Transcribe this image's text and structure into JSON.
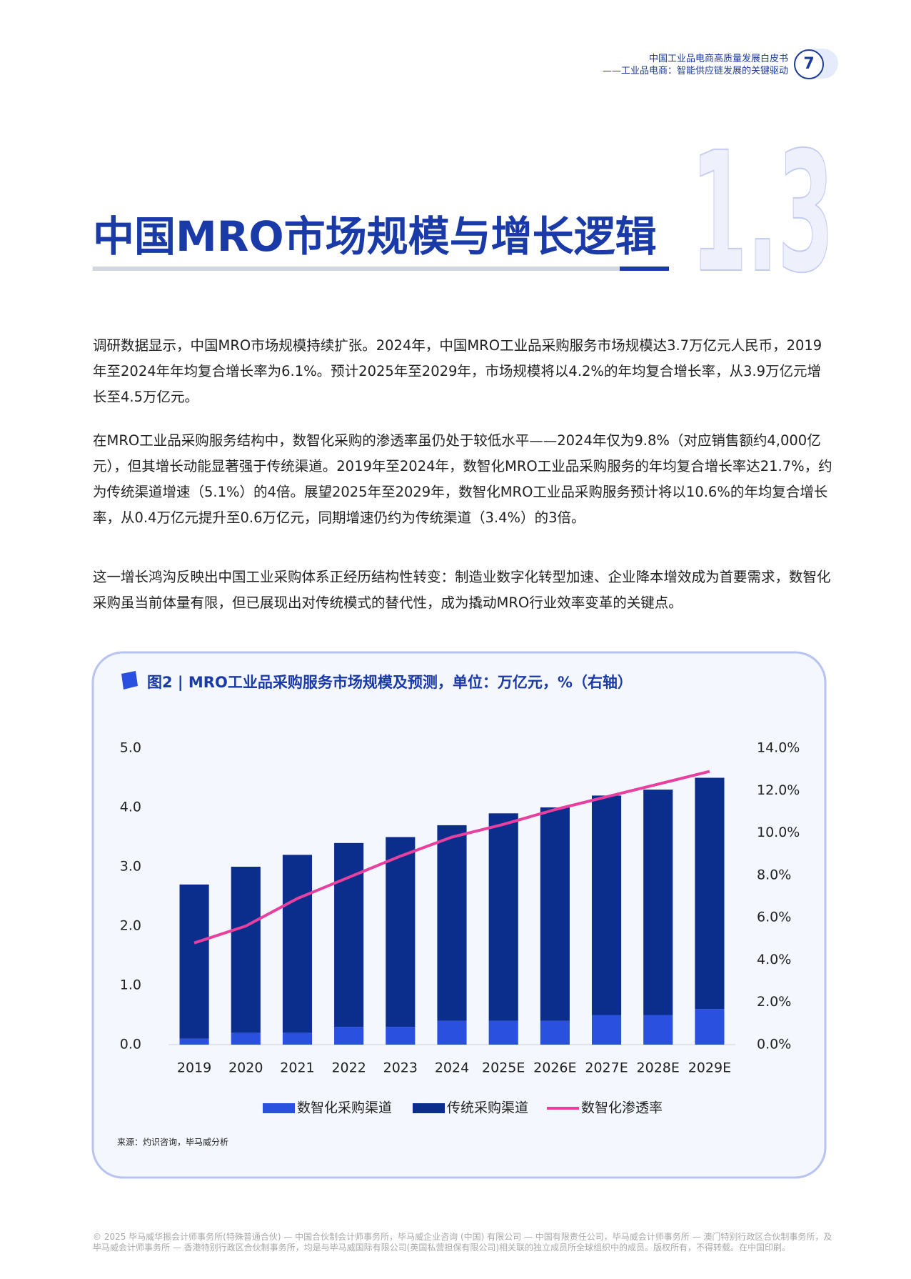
{
  "header": {
    "title": "中国工业品电商高质量发展白皮书",
    "subtitle": "——工业品电商：智能供应链发展的关键驱动",
    "page": "7"
  },
  "section": {
    "number": "1.3",
    "title": "中国MRO市场规模与增长逻辑"
  },
  "paragraphs": [
    "调研数据显示，中国MRO市场规模持续扩张。2024年，中国MRO工业品采购服务市场规模达3.7万亿元人民币，2019年至2024年年均复合增长率为6.1%。预计2025年至2029年，市场规模将以4.2%的年均复合增长率，从3.9万亿元增长至4.5万亿元。",
    "在MRO工业品采购服务结构中，数智化采购的渗透率虽仍处于较低水平——2024年仅为9.8%（对应销售额约4,000亿元），但其增长动能显著强于传统渠道。2019年至2024年，数智化MRO工业品采购服务的年均复合增长率达21.7%，约为传统渠道增速（5.1%）的4倍。展望2025年至2029年，数智化MRO工业品采购服务预计将以10.6%的年均复合增长率，从0.4万亿元提升至0.6万亿元，同期增速仍约为传统渠道（3.4%）的3倍。",
    "这一增长鸿沟反映出中国工业采购体系正经历结构性转变：制造业数字化转型加速、企业降本增效成为首要需求，数智化采购虽当前体量有限，但已展现出对传统模式的替代性，成为撬动MRO行业效率变革的关键点。"
  ],
  "chart_data": {
    "type": "stacked-bar-line",
    "title": "图2 | MRO工业品采购服务市场规模及预测，单位：万亿元，%（右轴）",
    "categories": [
      "2019",
      "2020",
      "2021",
      "2022",
      "2023",
      "2024",
      "2025E",
      "2026E",
      "2027E",
      "2028E",
      "2029E"
    ],
    "series": [
      {
        "name": "数智化采购渠道",
        "color": "#2a50e0",
        "values": [
          0.1,
          0.2,
          0.2,
          0.3,
          0.3,
          0.4,
          0.4,
          0.4,
          0.5,
          0.5,
          0.6
        ]
      },
      {
        "name": "传统采购渠道",
        "color": "#0b2e8c",
        "values": [
          2.6,
          2.8,
          3.0,
          3.1,
          3.2,
          3.3,
          3.5,
          3.6,
          3.7,
          3.8,
          3.9
        ]
      },
      {
        "name": "数智化渗透率",
        "color": "#e8409f",
        "axis": "y2",
        "values": [
          4.8,
          5.6,
          6.9,
          7.9,
          8.9,
          9.8,
          10.4,
          11.1,
          11.7,
          12.3,
          12.9
        ]
      }
    ],
    "ylim": [
      0,
      5
    ],
    "yticks": [
      {
        "value": 0,
        "label": "0.0"
      },
      {
        "value": 1,
        "label": "1.0"
      },
      {
        "value": 2,
        "label": "2.0"
      },
      {
        "value": 3,
        "label": "3.0"
      },
      {
        "value": 4,
        "label": "4.0"
      },
      {
        "value": 5,
        "label": "5.0"
      }
    ],
    "y2lim": [
      0,
      14
    ],
    "y2ticks": [
      {
        "value": 0,
        "label": "0.0%"
      },
      {
        "value": 2,
        "label": "2.0%"
      },
      {
        "value": 4,
        "label": "4.0%"
      },
      {
        "value": 6,
        "label": "6.0%"
      },
      {
        "value": 8,
        "label": "8.0%"
      },
      {
        "value": 10,
        "label": "10.0%"
      },
      {
        "value": 12,
        "label": "12.0%"
      },
      {
        "value": 14,
        "label": "14.0%"
      }
    ],
    "grid": false,
    "legend": "bottom"
  },
  "source": "来源：灼识咨询，毕马威分析",
  "footer": "© 2025 毕马威华振会计师事务所(特殊普通合伙) — 中国合伙制会计师事务所，毕马威企业咨询 (中国) 有限公司 — 中国有限责任公司，毕马威会计师事务所 — 澳门特别行政区合伙制事务所，及毕马威会计师事务所 — 香港特别行政区合伙制事务所，均是与毕马威国际有限公司(英国私营担保有限公司)相关联的独立成员所全球组织中的成员。版权所有，不得转载。在中国印刷。"
}
